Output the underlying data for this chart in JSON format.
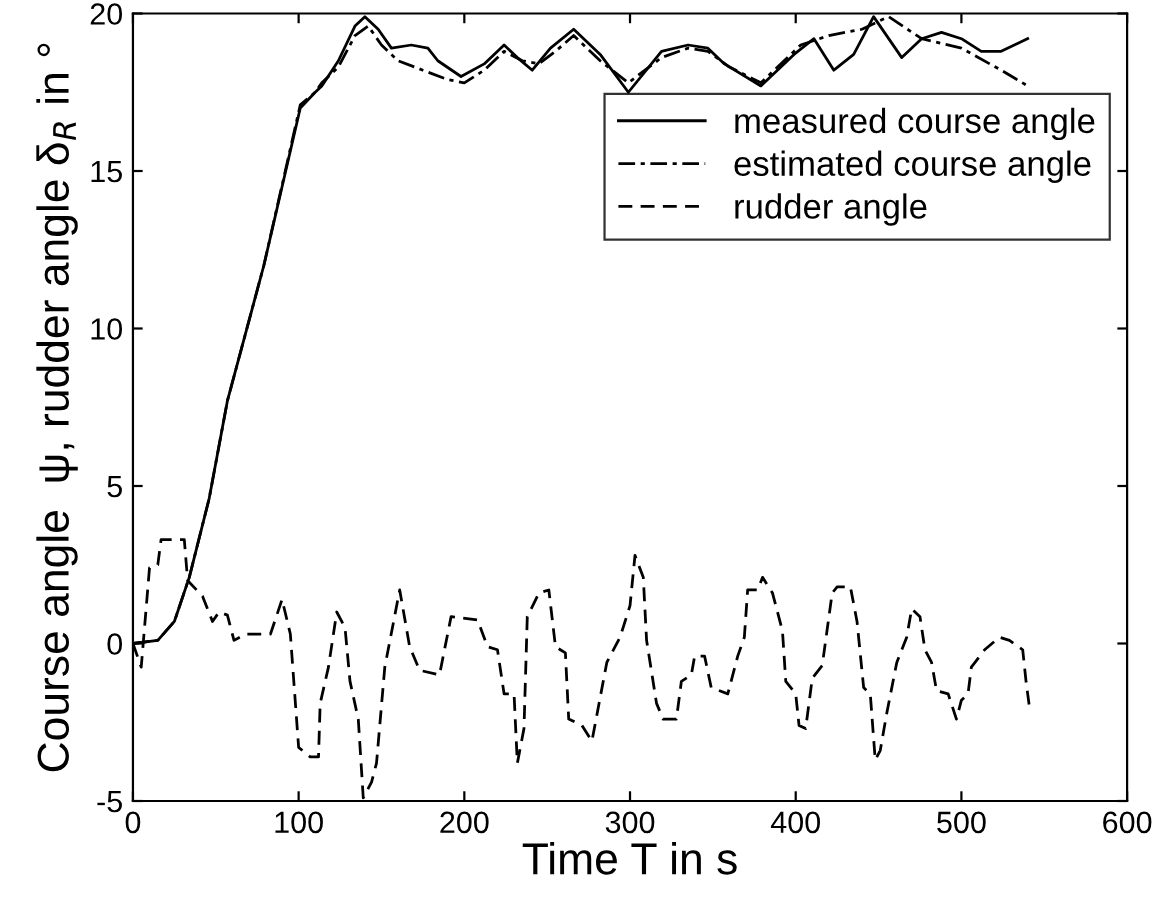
{
  "chart_data": {
    "type": "line",
    "xlabel": "Time T in s",
    "ylabel": "Course angle  ψ, rudder angle δ$_{R}$ in °",
    "xlim": [
      0,
      600
    ],
    "ylim": [
      -5,
      20
    ],
    "xticks": [
      0,
      100,
      200,
      300,
      400,
      500,
      600
    ],
    "yticks": [
      -5,
      0,
      5,
      10,
      15,
      20
    ],
    "grid": false,
    "legend": "top right",
    "marker": "none",
    "series": [
      {
        "name": "measured course angle",
        "color": "#000000",
        "line_style": "solid",
        "x": [
          0,
          15,
          25,
          34,
          46,
          57,
          79,
          101,
          110,
          114,
          124,
          134,
          140,
          148,
          156,
          168,
          178,
          184,
          198,
          212,
          224,
          232,
          241,
          252,
          266,
          282,
          299,
          319,
          335,
          347,
          357,
          379,
          399,
          411,
          423,
          435,
          447,
          464,
          476,
          488,
          500,
          512,
          524,
          540
        ],
        "values": [
          0,
          0.1,
          0.7,
          2.1,
          4.6,
          7.7,
          12.0,
          17.0,
          17.5,
          17.7,
          18.5,
          19.6,
          19.9,
          19.5,
          18.9,
          19.0,
          18.9,
          18.5,
          18.0,
          18.4,
          19.0,
          18.6,
          18.2,
          18.9,
          19.5,
          18.7,
          17.5,
          18.8,
          19.0,
          18.9,
          18.4,
          17.7,
          18.7,
          19.2,
          18.2,
          18.7,
          19.9,
          18.6,
          19.2,
          19.4,
          19.2,
          18.8,
          18.8,
          19.2
        ]
      },
      {
        "name": "estimated course angle",
        "color": "#000000",
        "line_style": "dashdot",
        "x": [
          0,
          15,
          25,
          34,
          46,
          57,
          79,
          101,
          110,
          114,
          124,
          134,
          142,
          150,
          160,
          175,
          190,
          200,
          212,
          224,
          235,
          245,
          255,
          266,
          282,
          299,
          319,
          335,
          347,
          360,
          379,
          403,
          420,
          440,
          456,
          476,
          500,
          524,
          540
        ],
        "values": [
          0,
          0.1,
          0.7,
          2.1,
          4.6,
          7.7,
          12.0,
          17.1,
          17.5,
          17.8,
          18.3,
          19.3,
          19.6,
          19.0,
          18.5,
          18.2,
          17.9,
          17.8,
          18.2,
          18.8,
          18.5,
          18.4,
          18.8,
          19.3,
          18.5,
          17.8,
          18.6,
          18.9,
          18.8,
          18.3,
          17.8,
          19.0,
          19.3,
          19.5,
          19.9,
          19.2,
          18.9,
          18.2,
          17.7
        ]
      },
      {
        "name": "rudder angle",
        "color": "#000000",
        "line_style": "dashed",
        "x": [
          0,
          5,
          10,
          15,
          17,
          31,
          33,
          42,
          48,
          52,
          57,
          61,
          68,
          83,
          90,
          95,
          100,
          107,
          112,
          113,
          118,
          123,
          128,
          131,
          136,
          139,
          144,
          147,
          152,
          161,
          167,
          173,
          185,
          192,
          208,
          214,
          220,
          224,
          230,
          232,
          236,
          238,
          245,
          251,
          255,
          261,
          263,
          271,
          277,
          286,
          294,
          300,
          303,
          308,
          310,
          316,
          320,
          328,
          331,
          337,
          339,
          345,
          349,
          359,
          365,
          369,
          371,
          377,
          380,
          386,
          392,
          394,
          400,
          402,
          406,
          410,
          416,
          422,
          425,
          433,
          437,
          441,
          445,
          448,
          451,
          455,
          461,
          467,
          470,
          475,
          478,
          482,
          485,
          492,
          497,
          500,
          504,
          506,
          514,
          523,
          529,
          537,
          539,
          541
        ],
        "values": [
          0,
          -0.75,
          2.4,
          2.5,
          3.3,
          3.3,
          2.0,
          1.5,
          0.7,
          1.0,
          0.9,
          0.1,
          0.3,
          0.3,
          1.4,
          0.3,
          -3.3,
          -3.6,
          -3.6,
          -1.9,
          -0.75,
          1.0,
          0.5,
          -1.2,
          -2.4,
          -4.9,
          -4.4,
          -3.8,
          -0.75,
          1.7,
          -0.1,
          -0.85,
          -1.0,
          0.85,
          0.75,
          -0.1,
          -0.2,
          -1.6,
          -1.6,
          -3.8,
          -2.7,
          0.85,
          1.6,
          1.7,
          -0.1,
          -0.3,
          -2.4,
          -2.6,
          -3.1,
          -0.6,
          0.2,
          1.2,
          2.8,
          2.1,
          0.1,
          -1.9,
          -2.4,
          -2.4,
          -1.2,
          -1.0,
          -0.4,
          -0.4,
          -1.4,
          -1.6,
          -0.4,
          0.2,
          1.7,
          1.7,
          2.1,
          1.6,
          0.4,
          -1.2,
          -1.6,
          -2.6,
          -2.7,
          -1.1,
          -0.7,
          1.6,
          1.8,
          1.8,
          0.7,
          -1.4,
          -1.6,
          -3.7,
          -3.4,
          -2.2,
          -0.6,
          0.2,
          1.1,
          0.85,
          -0.2,
          -0.6,
          -1.5,
          -1.6,
          -2.4,
          -1.8,
          -1.6,
          -0.75,
          -0.2,
          0.2,
          0.1,
          -0.2,
          -1.2,
          -2.0
        ]
      }
    ]
  }
}
